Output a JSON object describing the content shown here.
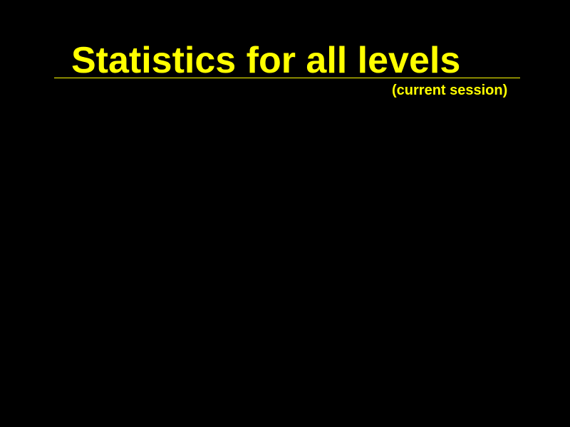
{
  "screen": {
    "title": "Statistics for all levels",
    "subtitle": "(current session)"
  },
  "colors": {
    "background": "#000000",
    "text": "#ffff00"
  }
}
